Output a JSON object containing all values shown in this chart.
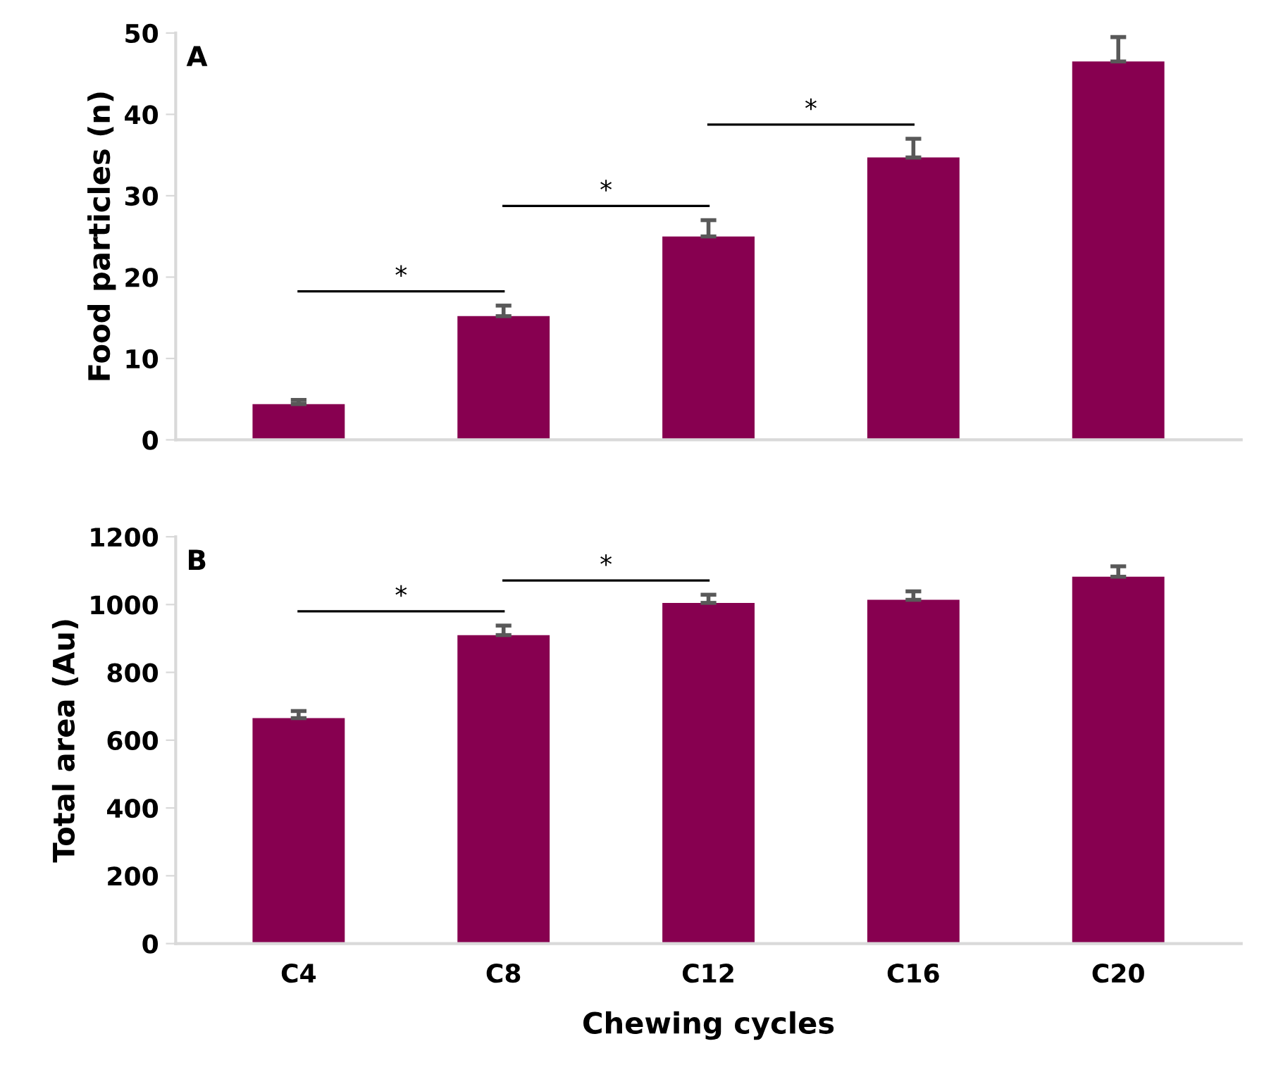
{
  "chart_data": [
    {
      "type": "bar",
      "title": "A",
      "ylabel": "Food particles (n)",
      "categories": [
        null,
        null,
        null,
        null,
        null
      ],
      "values": [
        4.4,
        15.2,
        25.0,
        34.7,
        46.5
      ],
      "color": "#870050",
      "errors": [
        [
          4.4,
          4.9
        ],
        [
          15.2,
          16.5
        ],
        [
          25.0,
          27.0
        ],
        [
          34.7,
          37.0
        ],
        [
          46.5,
          49.5
        ]
      ],
      "ylim": [
        0,
        50
      ],
      "yticks": [
        0,
        10,
        20,
        30,
        40,
        50
      ],
      "grid": false,
      "tick_labels": "y",
      "annotations": [
        "*",
        "*",
        "*"
      ]
    },
    {
      "type": "bar",
      "title": "B",
      "ylabel": "Total area (Au)",
      "xlabel": "Chewing cycles",
      "categories": [
        "C4",
        "C8",
        "C12",
        "C16",
        "C20"
      ],
      "values": [
        665,
        910,
        1005,
        1014,
        1082
      ],
      "color": "#870050",
      "errors": [
        [
          665,
          686
        ],
        [
          910,
          938
        ],
        [
          1005,
          1029
        ],
        [
          1014,
          1039
        ],
        [
          1082,
          1113
        ]
      ],
      "ylim": [
        0,
        1200
      ],
      "yticks": [
        0,
        200,
        400,
        600,
        800,
        1000,
        1200
      ],
      "grid": false,
      "annotations": [
        "*",
        "*"
      ]
    }
  ]
}
